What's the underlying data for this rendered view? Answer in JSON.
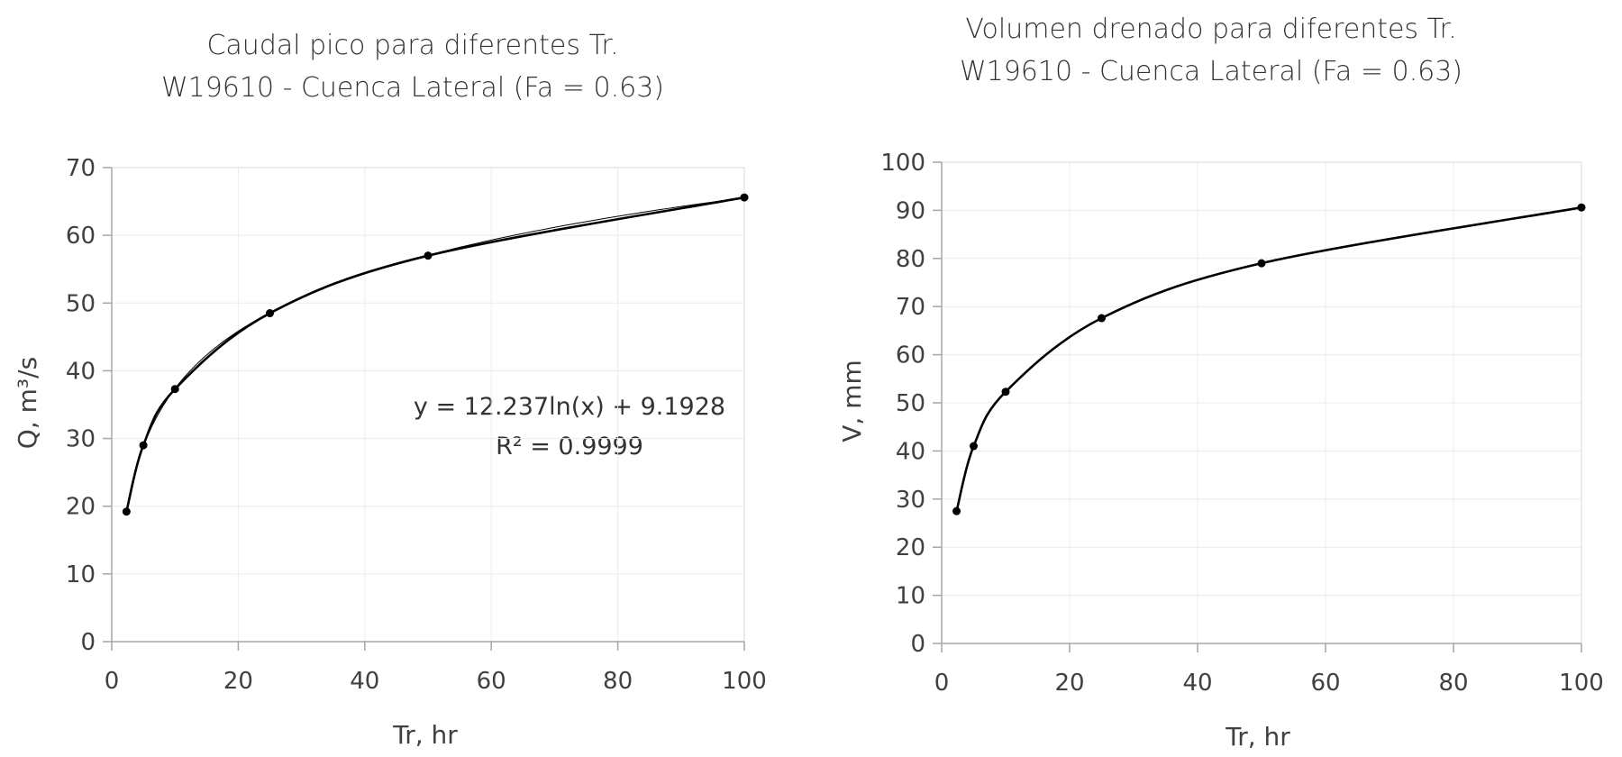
{
  "chart_data": [
    {
      "type": "scatter",
      "title": "Caudal pico para diferentes Tr.",
      "subtitle": "W19610 - Cuenca Lateral (Fa = 0.63)",
      "xlabel": "Tr, hr",
      "ylabel": "Q, m³/s",
      "xlim": [
        0,
        100
      ],
      "ylim": [
        0,
        70
      ],
      "xticks": [
        0,
        20,
        40,
        60,
        80,
        100
      ],
      "yticks": [
        0,
        10,
        20,
        30,
        40,
        50,
        60,
        70
      ],
      "grid": true,
      "series": [
        {
          "x": [
            2.33,
            5,
            10,
            25,
            50,
            100
          ],
          "values": [
            19.2,
            29.0,
            37.3,
            48.5,
            57.0,
            65.6
          ],
          "color": "#000000"
        }
      ],
      "trendline": {
        "type": "logarithmic",
        "a": 12.237,
        "b": 9.1928
      },
      "annotations": [
        "y = 12.237ln(x) + 9.1928",
        "R² = 0.9999"
      ]
    },
    {
      "type": "scatter",
      "title": "Volumen drenado para diferentes Tr.",
      "subtitle": "W19610 - Cuenca Lateral (Fa = 0.63)",
      "xlabel": "Tr, hr",
      "ylabel": "V, mm",
      "xlim": [
        0,
        100
      ],
      "ylim": [
        0,
        100
      ],
      "xticks": [
        0,
        20,
        40,
        60,
        80,
        100
      ],
      "yticks": [
        0,
        10,
        20,
        30,
        40,
        50,
        60,
        70,
        80,
        90,
        100
      ],
      "grid": true,
      "series": [
        {
          "x": [
            2.33,
            5,
            10,
            25,
            50,
            100
          ],
          "values": [
            27.5,
            41.0,
            52.3,
            67.6,
            79.0,
            90.6
          ],
          "color": "#000000"
        }
      ]
    }
  ]
}
